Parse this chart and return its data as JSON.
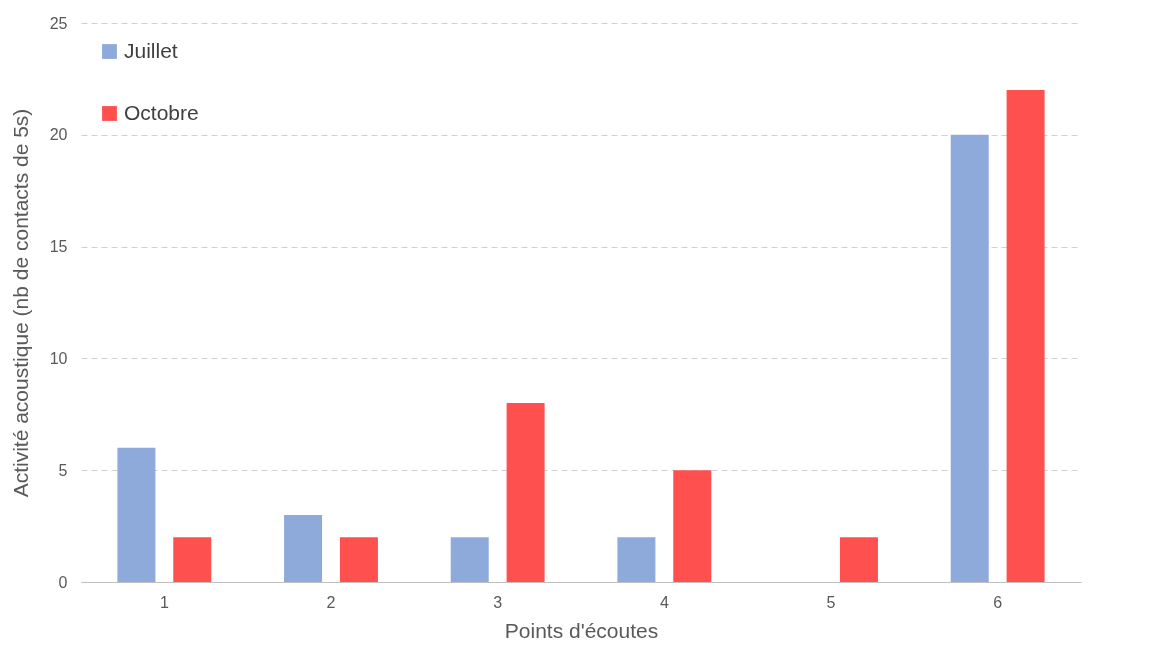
{
  "chart_data": {
    "type": "bar",
    "xlabel": "Points d'écoutes",
    "ylabel": "Activité acoustique (nb de contacts de 5s)",
    "categories": [
      "1",
      "2",
      "3",
      "4",
      "5",
      "6"
    ],
    "series": [
      {
        "name": "Juillet",
        "color": "#8eaadb",
        "values": [
          6,
          3,
          2,
          2,
          0,
          20
        ]
      },
      {
        "name": "Octobre",
        "color": "#ff5050",
        "values": [
          2,
          2,
          8,
          5,
          2,
          22
        ]
      }
    ],
    "ylim": [
      0,
      25
    ],
    "yticks": [
      0,
      5,
      10,
      15,
      20,
      25
    ],
    "grid": "y",
    "legend": "top left"
  }
}
